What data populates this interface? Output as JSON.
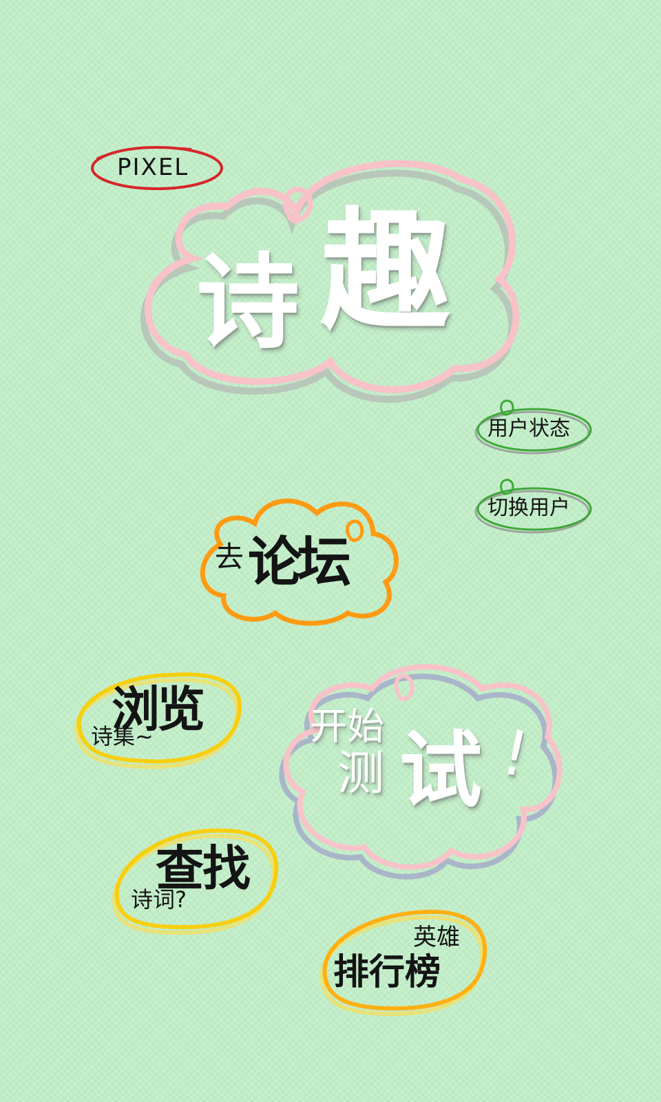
{
  "brand": {
    "label": "PIXEL"
  },
  "title": {
    "char1": "诗",
    "char2": "趣"
  },
  "menu": {
    "user_status": "用户状态",
    "switch_user": "切换用户",
    "forum": {
      "small": "去",
      "big": "论坛"
    },
    "browse": {
      "big": "浏览",
      "small": "诗集~"
    },
    "start_test": {
      "line1": "开始",
      "line2a": "测",
      "line2b": "试",
      "mark": "!"
    },
    "search": {
      "big": "查找",
      "small": "诗词?"
    },
    "leaderboard": {
      "small": "英雄",
      "big": "排行榜"
    }
  },
  "colors": {
    "background": "#c6efcc",
    "pink_outline": "#f8c2c9",
    "red_outline": "#d4272b",
    "green_outline": "#3fa83a",
    "orange_outline": "#ff9a12",
    "yellow_outline": "#f7cf10"
  }
}
